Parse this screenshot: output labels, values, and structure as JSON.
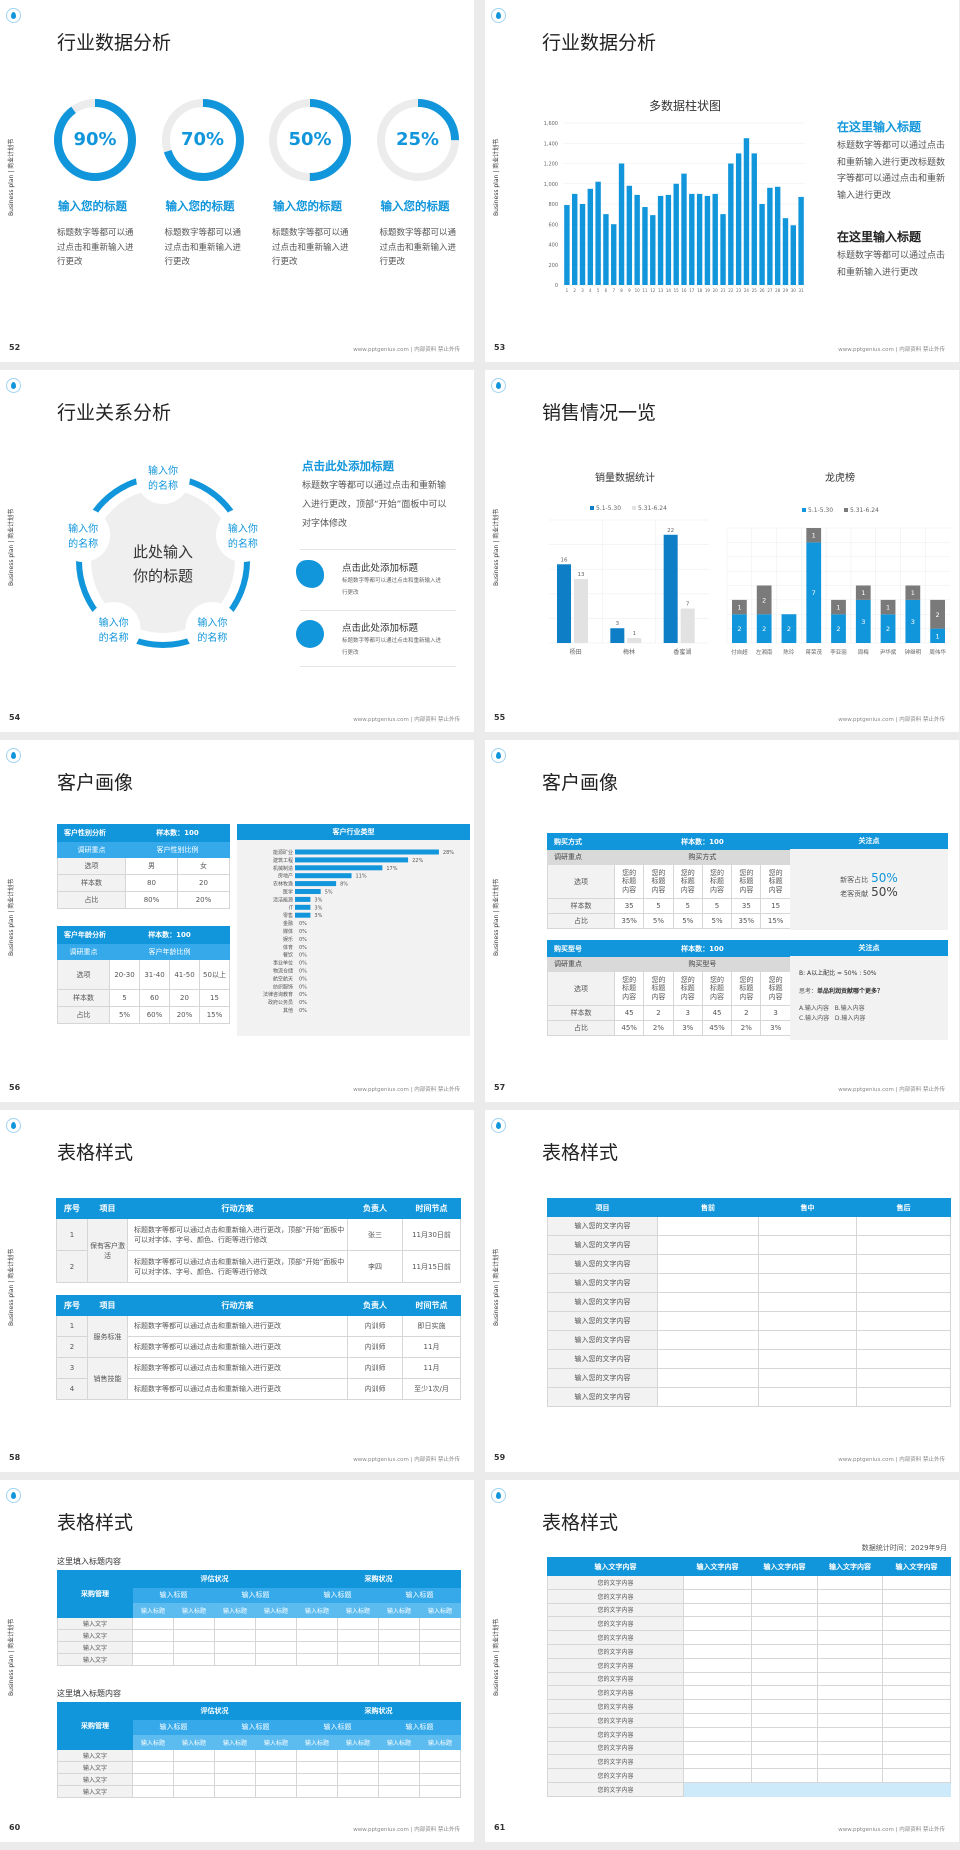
{
  "common": {
    "side_text": "Business plan | 商业计划书",
    "footer": "www.pptgenius.com | 内部资料 禁止外传",
    "accent": "#1296db",
    "light_accent": "#35a9ea",
    "gray_fill": "#f2f2f2"
  },
  "s52": {
    "page": "52",
    "title": "行业数据分析",
    "rings": [
      {
        "value": 90,
        "label": "90%",
        "heading": "输入您的标题",
        "body": "标题数字等都可以通过点击和重新输入进行更改"
      },
      {
        "value": 70,
        "label": "70%",
        "heading": "输入您的标题",
        "body": "标题数字等都可以通过点击和重新输入进行更改"
      },
      {
        "value": 50,
        "label": "50%",
        "heading": "输入您的标题",
        "body": "标题数字等都可以通过点击和重新输入进行更改"
      },
      {
        "value": 25,
        "label": "25%",
        "heading": "输入您的标题",
        "body": "标题数字等都可以通过点击和重新输入进行更改"
      }
    ]
  },
  "s53": {
    "page": "53",
    "title": "行业数据分析",
    "blocks": [
      {
        "heading": "在这里输入标题",
        "body": "标题数字等都可以通过点击和重新输入进行更改标题数字等都可以通过点击和重新输入进行更改"
      },
      {
        "heading": "在这里输入标题",
        "body": "标题数字等都可以通过点击和重新输入进行更改"
      }
    ]
  },
  "s54": {
    "page": "54",
    "title": "行业关系分析",
    "center": [
      "此处输入",
      "你的标题"
    ],
    "nodes": [
      "输入你的名称",
      "输入你的名称",
      "输入你的名称",
      "输入你的名称",
      "输入你的名称"
    ],
    "heading": "点击此处添加标题",
    "body": "标题数字等都可以通过点击和重新输入进行更改，顶部“开始”面板中可以对字体修改",
    "items": [
      {
        "icon": "china-map-icon",
        "title": "点击此处添加标题",
        "body": "标题数字等都可以通过点击和重新输入进行更改"
      },
      {
        "icon": "globe-icon",
        "title": "点击此处添加标题",
        "body": "标题数字等都可以通过点击和重新输入进行更改"
      }
    ]
  },
  "s55": {
    "page": "55",
    "title": "销售情况一览"
  },
  "s56": {
    "page": "56",
    "title": "客户画像",
    "gender": {
      "head": "客户性别分析",
      "sample": "样本数：100",
      "focus": "调研重点",
      "focus_val": "客户性别比例",
      "rows": [
        [
          "选项",
          "男",
          "女"
        ],
        [
          "样本数",
          "80",
          "20"
        ],
        [
          "占比",
          "80%",
          "20%"
        ]
      ]
    },
    "age": {
      "head": "客户年龄分析",
      "sample": "样本数：100",
      "focus": "调研重点",
      "focus_val": "客户年龄比例",
      "rows": [
        [
          "选项",
          "20-30",
          "31-40",
          "41-50",
          "50以上"
        ],
        [
          "样本数",
          "5",
          "60",
          "20",
          "15"
        ],
        [
          "占比",
          "5%",
          "60%",
          "20%",
          "15%"
        ]
      ]
    },
    "industry_head": "客户行业类型"
  },
  "s57": {
    "page": "57",
    "title": "客户画像",
    "tables": [
      {
        "head": "购买方式",
        "sample": "样本数：100",
        "focus": "调研重点",
        "focus_val": "购买方式",
        "options": [
          "您的标题内容",
          "您的标题内容",
          "您的标题内容",
          "您的标题内容",
          "您的标题内容",
          "您的标题内容"
        ],
        "rows": [
          [
            "样本数",
            "35",
            "5",
            "5",
            "5",
            "35",
            "15"
          ],
          [
            "占比",
            "35%",
            "5%",
            "5%",
            "5%",
            "35%",
            "15%"
          ]
        ],
        "option_label": "选项"
      },
      {
        "head": "购买型号",
        "sample": "样本数：100",
        "focus": "调研重点",
        "focus_val": "购买型号",
        "options": [
          "您的标题内容",
          "您的标题内容",
          "您的标题内容",
          "您的标题内容",
          "您的标题内容",
          "您的标题内容"
        ],
        "rows": [
          [
            "样本数",
            "45",
            "2",
            "3",
            "45",
            "2",
            "3"
          ],
          [
            "占比",
            "45%",
            "2%",
            "3%",
            "45%",
            "2%",
            "3%"
          ]
        ],
        "option_label": "选项"
      }
    ],
    "panel1": {
      "head": "关注点",
      "l1": "新客占比",
      "v1": "50%",
      "l2": "老客贡献",
      "v2": "50%"
    },
    "panel2": {
      "head": "关注点",
      "ratio": "B: A以上配比 = 50% : 50%",
      "think": "思考：",
      "question": "单品利润贡献哪个更多？",
      "opts1": "A.输入内容   B.输入内容",
      "opts2": "C.输入内容   D.输入内容"
    }
  },
  "s58": {
    "page": "58",
    "title": "表格样式",
    "headers": [
      "序号",
      "项目",
      "行动方案",
      "负责人",
      "时间节点"
    ],
    "table1": [
      {
        "item": "保有客户激活",
        "rows": [
          [
            "1",
            "标题数字等都可以通过点击和重新输入进行更改，顶部“开始”面板中可以对字体、字号、颜色、行距等进行修改",
            "张三",
            "11月30日前"
          ],
          [
            "2",
            "标题数字等都可以通过点击和重新输入进行更改，顶部“开始”面板中可以对字体、字号、颜色、行距等进行修改",
            "李四",
            "11月15日前"
          ]
        ]
      }
    ],
    "table2": [
      {
        "item": "服务标准",
        "rows": [
          [
            "1",
            "标题数字等都可以通过点击和重新输入进行更改",
            "内训师",
            "即日实施"
          ],
          [
            "2",
            "标题数字等都可以通过点击和重新输入进行更改",
            "内训师",
            "11月"
          ]
        ]
      },
      {
        "item": "销售技能",
        "rows": [
          [
            "3",
            "标题数字等都可以通过点击和重新输入进行更改",
            "内训师",
            "11月"
          ],
          [
            "4",
            "标题数字等都可以通过点击和重新输入进行更改",
            "内训师",
            "至少1次/月"
          ]
        ]
      }
    ]
  },
  "s59": {
    "page": "59",
    "title": "表格样式",
    "headers": [
      "项目",
      "售前",
      "售中",
      "售后"
    ],
    "rows": [
      "输入您的文字内容",
      "输入您的文字内容",
      "输入您的文字内容",
      "输入您的文字内容",
      "输入您的文字内容",
      "输入您的文字内容",
      "输入您的文字内容",
      "输入您的文字内容",
      "输入您的文字内容",
      "输入您的文字内容"
    ]
  },
  "s60": {
    "page": "60",
    "title": "表格样式",
    "tables": [
      {
        "caption": "这里填入标题内容",
        "corner": "采购管理",
        "groups": [
          "评估状况",
          "采购状况"
        ],
        "sub": [
          "输入标题",
          "输入标题",
          "输入标题",
          "输入标题"
        ],
        "sub2": [
          "输入标题",
          "输入标题",
          "输入标题",
          "输入标题",
          "输入标题",
          "输入标题",
          "输入标题",
          "输入标题"
        ],
        "rows": [
          "输入文字",
          "输入文字",
          "输入文字",
          "输入文字"
        ]
      },
      {
        "caption": "这里填入标题内容",
        "corner": "采购管理",
        "groups": [
          "评估状况",
          "采购状况"
        ],
        "sub": [
          "输入标题",
          "输入标题",
          "输入标题",
          "输入标题"
        ],
        "sub2": [
          "输入标题",
          "输入标题",
          "输入标题",
          "输入标题",
          "输入标题",
          "输入标题",
          "输入标题",
          "输入标题"
        ],
        "rows": [
          "输入文字",
          "输入文字",
          "输入文字",
          "输入文字"
        ]
      }
    ]
  },
  "s61": {
    "page": "61",
    "title": "表格样式",
    "stat_time": "数据统计时间：2029年9月",
    "headers": [
      "输入文字内容",
      "输入文字内容",
      "输入文字内容",
      "输入文字内容",
      "输入文字内容"
    ],
    "rows": [
      "您的文字内容",
      "您的文字内容",
      "您的文字内容",
      "您的文字内容",
      "您的文字内容",
      "您的文字内容",
      "您的文字内容",
      "您的文字内容",
      "您的文字内容",
      "您的文字内容",
      "您的文字内容",
      "您的文字内容",
      "您的文字内容",
      "您的文字内容",
      "您的文字内容",
      "您的文字内容"
    ]
  },
  "chart_data": [
    {
      "type": "bar",
      "title": "多数据柱状图",
      "categories": [
        "1",
        "2",
        "3",
        "4",
        "5",
        "6",
        "7",
        "8",
        "9",
        "10",
        "11",
        "12",
        "13",
        "14",
        "15",
        "16",
        "17",
        "18",
        "19",
        "20",
        "21",
        "22",
        "23",
        "24",
        "25",
        "26",
        "27",
        "28",
        "29",
        "30",
        "31"
      ],
      "values": [
        790,
        900,
        800,
        950,
        1020,
        700,
        600,
        1200,
        980,
        890,
        770,
        690,
        880,
        890,
        1000,
        1100,
        900,
        900,
        880,
        900,
        700,
        1200,
        1300,
        1450,
        1300,
        800,
        960,
        970,
        660,
        590,
        870
      ],
      "ylim": [
        0,
        1600
      ],
      "yticks": [
        "0",
        "200",
        "400",
        "600",
        "800",
        "1,000",
        "1,200",
        "1,400",
        "1,600"
      ],
      "grid": true,
      "color": "#1296db"
    },
    {
      "type": "bar",
      "title": "销量数据统计",
      "categories": [
        "杨田",
        "梅林",
        "香蜜湖"
      ],
      "series": [
        {
          "name": "5.1-5.30",
          "values": [
            16,
            3,
            22
          ],
          "color": "#0e7ec6"
        },
        {
          "name": "5.31-6.24",
          "values": [
            13,
            1,
            7
          ],
          "color": "#e2e2e2"
        }
      ],
      "ylim": [
        0,
        25
      ],
      "legend": "top",
      "grid": true
    },
    {
      "type": "bar",
      "stacked": true,
      "title": "龙虎榜",
      "categories": [
        "付自超",
        "左湘南",
        "陈玲",
        "蒋荣茂",
        "李亚丽",
        "周梅",
        "尹华斌",
        "钟继明",
        "周伟华"
      ],
      "series": [
        {
          "name": "5.1-5.30",
          "values": [
            2,
            2,
            2,
            7,
            2,
            3,
            2,
            3,
            1
          ],
          "color": "#1296db"
        },
        {
          "name": "5.31-6.24",
          "values": [
            1,
            2,
            0,
            1,
            1,
            1,
            1,
            1,
            2
          ],
          "color": "#7a7a7a"
        }
      ],
      "ylim": [
        0,
        9
      ],
      "legend": "top",
      "grid": true
    },
    {
      "type": "bar",
      "orientation": "horizontal",
      "title": "客户行业类型",
      "categories": [
        "能源矿业",
        "建筑工程",
        "机械制造",
        "房地产",
        "农林牧渔",
        "医学",
        "清洁能源",
        "IT",
        "零售",
        "金融",
        "媒体",
        "娱乐",
        "体育",
        "餐饮",
        "事业单位",
        "物流仓储",
        "航空航天",
        "纺织服饰",
        "法律咨询教育",
        "政府公务员",
        "其他"
      ],
      "values": [
        28,
        22,
        17,
        11,
        8,
        5,
        3,
        3,
        3,
        0,
        0,
        0,
        0,
        0,
        0,
        0,
        0,
        0,
        0,
        0,
        0
      ],
      "labels": [
        "28%",
        "22%",
        "17%",
        "11%",
        "8%",
        "5%",
        "3%",
        "3%",
        "3%",
        "0%",
        "0%",
        "0%",
        "0%",
        "0%",
        "0%",
        "0%",
        "0%",
        "0%",
        "0%",
        "0%",
        "0%"
      ],
      "color": "#1296db"
    }
  ]
}
